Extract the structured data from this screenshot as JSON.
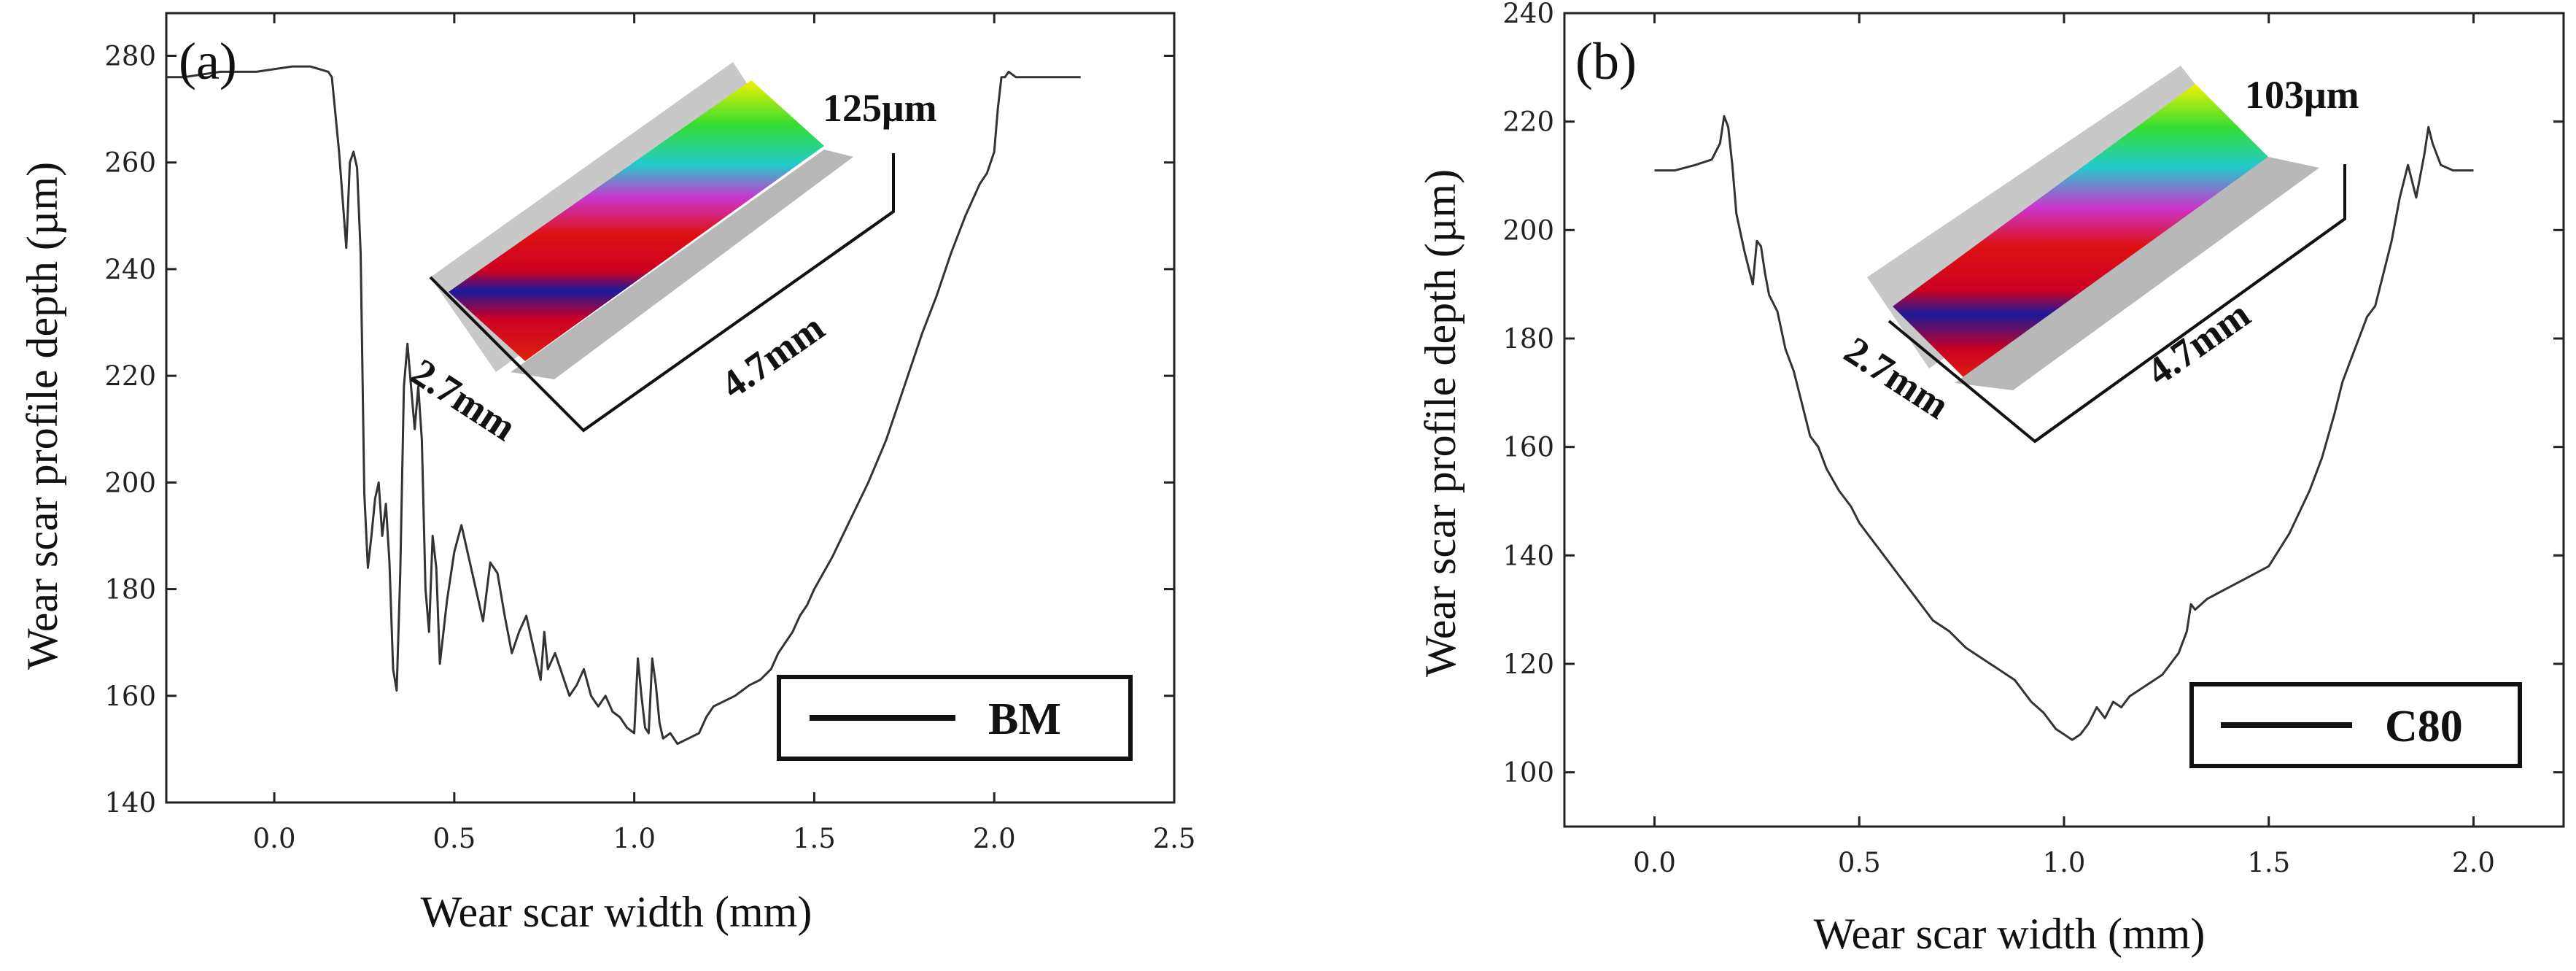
{
  "chart_data": [
    {
      "type": "line",
      "panel_label": "(a)",
      "xlabel": "Wear scar width (mm)",
      "ylabel": "Wear scar profile depth (µm)",
      "xlim": [
        -0.3,
        2.5
      ],
      "ylim": [
        140,
        288
      ],
      "xticks": [
        0.0,
        0.5,
        1.0,
        1.5,
        2.0,
        2.5
      ],
      "xtick_labels": [
        "0.0",
        "0.5",
        "1.0",
        "1.5",
        "2.0",
        "2.5"
      ],
      "yticks": [
        140,
        160,
        180,
        200,
        220,
        240,
        260,
        280
      ],
      "ytick_labels": [
        "140",
        "160",
        "180",
        "200",
        "220",
        "240",
        "260",
        "280"
      ],
      "series": [
        {
          "name": "BM",
          "x": [
            -0.3,
            -0.25,
            -0.15,
            -0.05,
            0.05,
            0.1,
            0.15,
            0.16,
            0.18,
            0.2,
            0.21,
            0.22,
            0.23,
            0.24,
            0.25,
            0.26,
            0.27,
            0.28,
            0.29,
            0.3,
            0.31,
            0.32,
            0.33,
            0.34,
            0.35,
            0.36,
            0.37,
            0.38,
            0.39,
            0.4,
            0.41,
            0.42,
            0.43,
            0.44,
            0.45,
            0.46,
            0.48,
            0.5,
            0.52,
            0.54,
            0.56,
            0.58,
            0.6,
            0.62,
            0.64,
            0.66,
            0.68,
            0.7,
            0.72,
            0.74,
            0.75,
            0.76,
            0.78,
            0.8,
            0.82,
            0.84,
            0.86,
            0.88,
            0.9,
            0.92,
            0.94,
            0.96,
            0.98,
            1.0,
            1.01,
            1.02,
            1.03,
            1.04,
            1.05,
            1.06,
            1.07,
            1.08,
            1.1,
            1.12,
            1.15,
            1.18,
            1.2,
            1.22,
            1.25,
            1.28,
            1.3,
            1.32,
            1.35,
            1.38,
            1.4,
            1.42,
            1.44,
            1.46,
            1.48,
            1.5,
            1.55,
            1.6,
            1.65,
            1.7,
            1.75,
            1.8,
            1.84,
            1.88,
            1.92,
            1.96,
            1.98,
            2.0,
            2.01,
            2.02,
            2.03,
            2.04,
            2.06,
            2.08,
            2.12,
            2.18,
            2.24
          ],
          "y": [
            276,
            276,
            277,
            277,
            278,
            278,
            277,
            276,
            262,
            244,
            260,
            262,
            259,
            243,
            198,
            184,
            190,
            197,
            200,
            190,
            196,
            185,
            165,
            161,
            183,
            218,
            226,
            218,
            210,
            218,
            208,
            180,
            172,
            190,
            184,
            166,
            178,
            187,
            192,
            186,
            180,
            174,
            185,
            183,
            175,
            168,
            172,
            175,
            169,
            163,
            172,
            165,
            168,
            164,
            160,
            162,
            165,
            160,
            158,
            160,
            157,
            156,
            154,
            153,
            167,
            160,
            154,
            153,
            167,
            162,
            155,
            152,
            153,
            151,
            152,
            153,
            156,
            158,
            159,
            160,
            161,
            162,
            163,
            165,
            168,
            170,
            172,
            175,
            177,
            180,
            186,
            193,
            200,
            208,
            218,
            228,
            235,
            243,
            250,
            256,
            258,
            262,
            270,
            276,
            276,
            277,
            276,
            276,
            276,
            276,
            276
          ]
        }
      ],
      "legend": [
        "BM"
      ],
      "inset": {
        "depth_label": "125μm",
        "width_label": "2.7mm",
        "length_label": "4.7mm"
      }
    },
    {
      "type": "line",
      "panel_label": "(b)",
      "xlabel": "Wear scar width (mm)",
      "ylabel": "Wear scar profile depth (µm)",
      "xlim": [
        -0.22,
        2.22
      ],
      "ylim": [
        90,
        240
      ],
      "xticks": [
        0.0,
        0.5,
        1.0,
        1.5,
        2.0
      ],
      "xtick_labels": [
        "0.0",
        "0.5",
        "1.0",
        "1.5",
        "2.0"
      ],
      "yticks": [
        100,
        120,
        140,
        160,
        180,
        200,
        220,
        240
      ],
      "ytick_labels": [
        "100",
        "120",
        "140",
        "160",
        "180",
        "200",
        "220",
        "240"
      ],
      "series": [
        {
          "name": "C80",
          "x": [
            0.0,
            0.05,
            0.1,
            0.14,
            0.16,
            0.17,
            0.18,
            0.19,
            0.2,
            0.22,
            0.24,
            0.25,
            0.26,
            0.27,
            0.28,
            0.3,
            0.32,
            0.34,
            0.36,
            0.38,
            0.4,
            0.42,
            0.45,
            0.48,
            0.5,
            0.53,
            0.56,
            0.6,
            0.64,
            0.68,
            0.72,
            0.76,
            0.8,
            0.84,
            0.88,
            0.92,
            0.95,
            0.98,
            1.0,
            1.02,
            1.04,
            1.06,
            1.08,
            1.1,
            1.12,
            1.14,
            1.16,
            1.2,
            1.24,
            1.28,
            1.3,
            1.31,
            1.32,
            1.35,
            1.4,
            1.45,
            1.5,
            1.55,
            1.6,
            1.63,
            1.66,
            1.68,
            1.7,
            1.72,
            1.74,
            1.76,
            1.78,
            1.8,
            1.82,
            1.84,
            1.86,
            1.87,
            1.88,
            1.89,
            1.9,
            1.92,
            1.95,
            2.0
          ],
          "y": [
            211,
            211,
            212,
            213,
            216,
            221,
            219,
            212,
            203,
            196,
            190,
            198,
            197,
            192,
            188,
            185,
            178,
            174,
            168,
            162,
            160,
            156,
            152,
            149,
            146,
            143,
            140,
            136,
            132,
            128,
            126,
            123,
            121,
            119,
            117,
            113,
            111,
            108,
            107,
            106,
            107,
            109,
            112,
            110,
            113,
            112,
            114,
            116,
            118,
            122,
            126,
            131,
            130,
            132,
            134,
            136,
            138,
            144,
            152,
            158,
            166,
            172,
            176,
            180,
            184,
            186,
            192,
            198,
            206,
            212,
            206,
            210,
            214,
            219,
            216,
            212,
            211,
            211
          ]
        }
      ],
      "legend": [
        "C80"
      ],
      "inset": {
        "depth_label": "103μm",
        "width_label": "2.7mm",
        "length_label": "4.7mm"
      }
    }
  ]
}
